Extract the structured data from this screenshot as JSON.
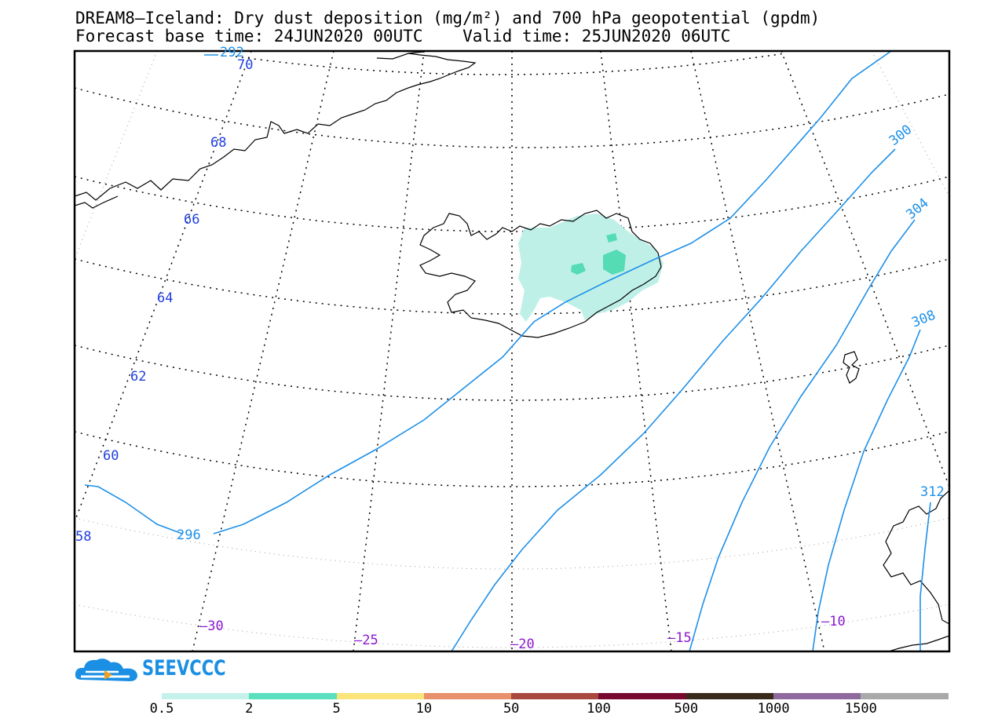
{
  "title_line1": "DREAM8—Iceland: Dry dust deposition (mg/m²) and 700 hPa geopotential (gpdm)",
  "title_line2": "Forecast base time: 24JUN2020 00UTC    Valid time: 25JUN2020 06UTC",
  "lat_labels": [
    "70",
    "68",
    "66",
    "64",
    "62",
    "60",
    "58"
  ],
  "lon_labels": [
    "–30",
    "–25",
    "–20",
    "–15",
    "–10"
  ],
  "contour_labels": [
    "296",
    "300",
    "304",
    "308",
    "312",
    "292"
  ],
  "colors": {
    "lat_label": "#1f3fe0",
    "lon_label": "#8a18d0",
    "contour": "#1e90e8",
    "dust_light": "#bff0e8",
    "dust_mid": "#55dcb4"
  },
  "logo_text": "SEEVCCC",
  "colorbar": {
    "colors": [
      "#c4f2ea",
      "#5ae0bf",
      "#fbe47a",
      "#e9906c",
      "#a9483e",
      "#780a30",
      "#3a2a1a",
      "#8e6a9e",
      "#a9a9a9"
    ],
    "labels": [
      "0.5",
      "2",
      "5",
      "10",
      "50",
      "100",
      "500",
      "1000",
      "1500"
    ]
  }
}
